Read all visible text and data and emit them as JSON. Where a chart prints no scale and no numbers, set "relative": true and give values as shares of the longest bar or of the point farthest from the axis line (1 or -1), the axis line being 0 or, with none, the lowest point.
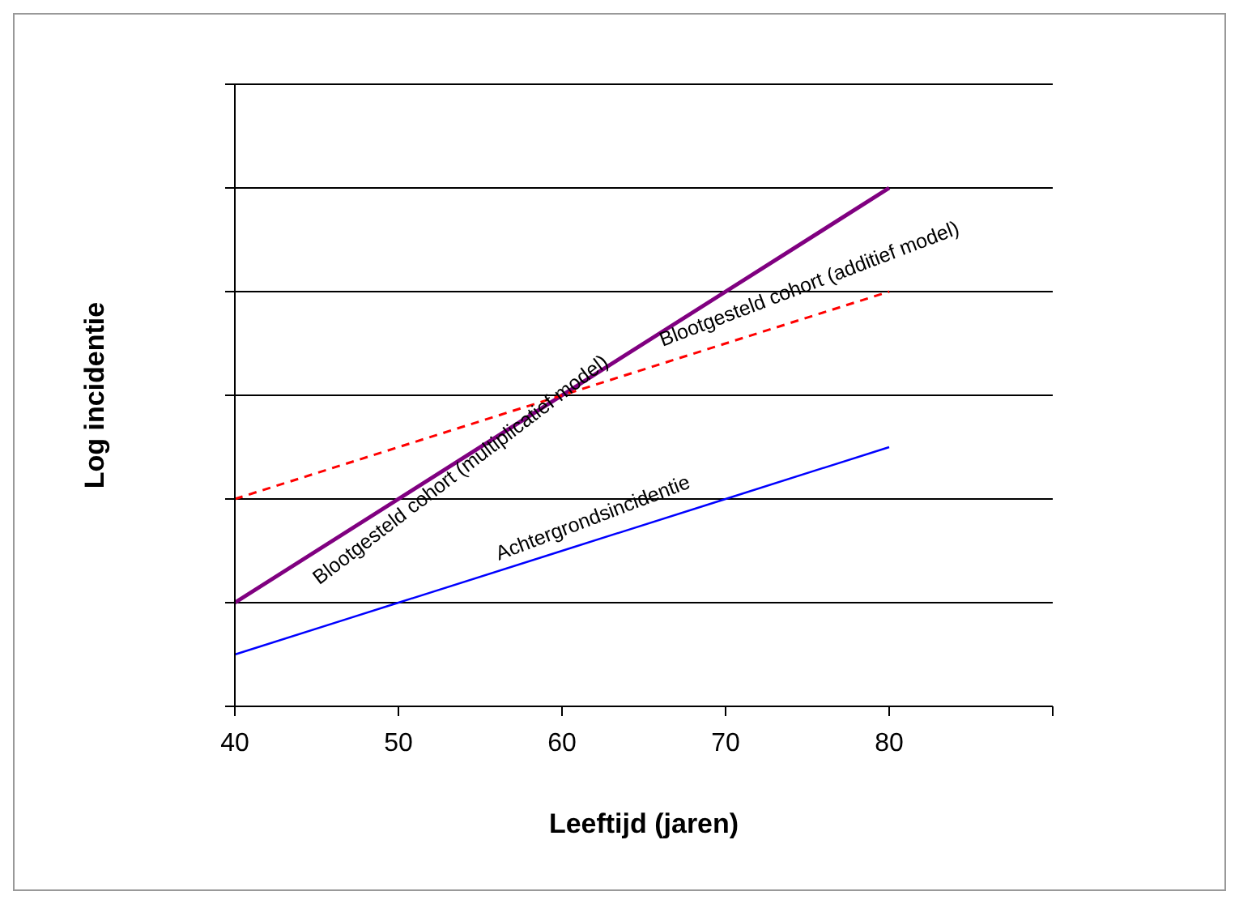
{
  "chart_data": {
    "type": "line",
    "relative": true,
    "xlabel": "Leeftijd (jaren)",
    "ylabel": "Log incidentie",
    "categories": [
      "40",
      "50",
      "60",
      "70",
      "80",
      null
    ],
    "grid": "y",
    "legend": false,
    "marker": "none",
    "series": [
      {
        "name": "Blootgesteld cohort (multiplicatief model)",
        "color": "#800080",
        "line_style": "solid",
        "values": [
          0.2,
          0.4,
          0.6,
          0.8,
          1.0,
          null
        ]
      },
      {
        "name": "Blootgesteld cohort (additief model)",
        "color": "#ff0000",
        "line_style": "dashed",
        "values": [
          0.4,
          0.5,
          0.6,
          0.7,
          0.8,
          null
        ]
      },
      {
        "name": "Achtergrondsincidentie",
        "color": "#0000ff",
        "line_style": "solid",
        "values": [
          0.1,
          0.2,
          0.3,
          0.4,
          0.5,
          null
        ]
      }
    ]
  }
}
